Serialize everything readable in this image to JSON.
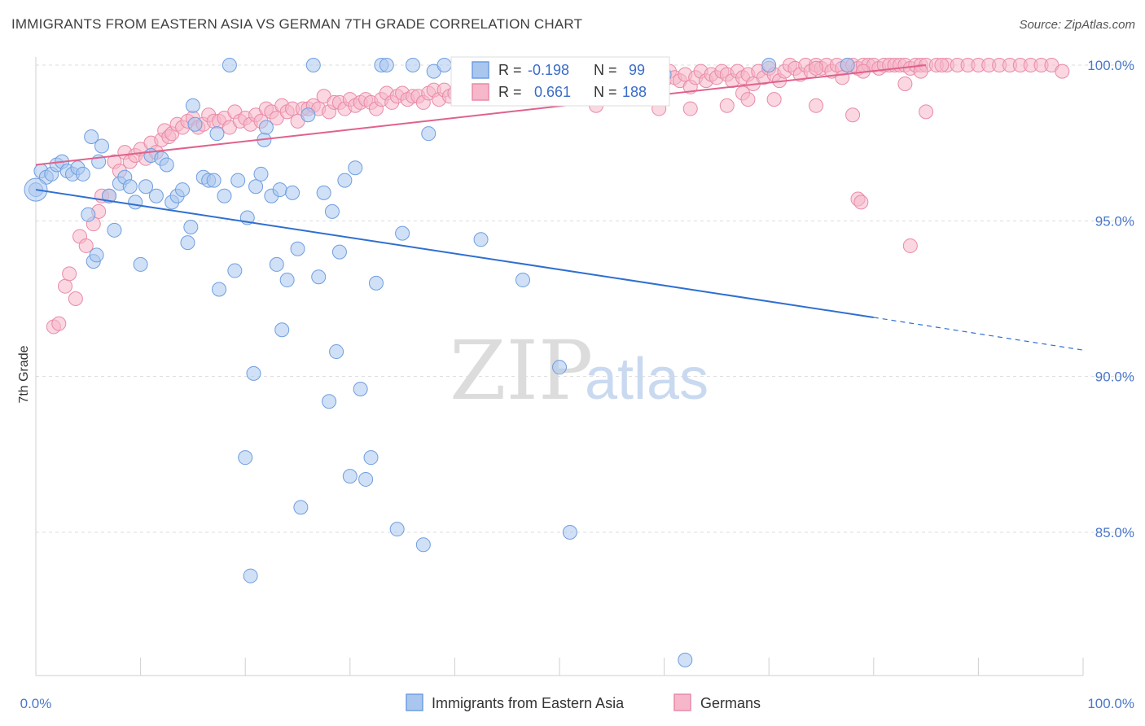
{
  "title": "IMMIGRANTS FROM EASTERN ASIA VS GERMAN 7TH GRADE CORRELATION CHART",
  "source": "Source: ZipAtlas.com",
  "watermark": {
    "zip": "ZIP",
    "atlas": "atlas"
  },
  "colors": {
    "blue_fill": "#a9c6ef",
    "blue_stroke": "#6f9ee0",
    "blue_line": "#2f6fd0",
    "pink_fill": "#f5b7c9",
    "pink_stroke": "#e98aa8",
    "pink_line": "#e0628c",
    "grid": "#dddddd",
    "tick_text": "#4a78c8"
  },
  "stats_box": {
    "blue": {
      "r_label": "R =",
      "r_value": "-0.198",
      "n_label": "N =",
      "n_value": "99"
    },
    "pink": {
      "r_label": "R =",
      "r_value": "0.661",
      "n_label": "N =",
      "n_value": "188"
    }
  },
  "legend": [
    {
      "label": "Immigrants from Eastern Asia",
      "color": "blue"
    },
    {
      "label": "Germans",
      "color": "pink"
    }
  ],
  "chart_data": {
    "type": "scatter",
    "xlabel": "",
    "ylabel": "7th Grade",
    "xlim": [
      0,
      100
    ],
    "ylim": [
      80.5,
      100.8
    ],
    "x_tick_labels": [
      {
        "value": 0,
        "label": "0.0%"
      },
      {
        "value": 100,
        "label": "100.0%"
      }
    ],
    "y_ticks": [
      {
        "value": 100,
        "label": "100.0%"
      },
      {
        "value": 95,
        "label": "95.0%"
      },
      {
        "value": 90,
        "label": "90.0%"
      },
      {
        "value": 85,
        "label": "85.0%"
      }
    ],
    "series": [
      {
        "name": "Immigrants from Eastern Asia",
        "color_key": "blue",
        "trend": {
          "x_start": 0,
          "y_start": 96.0,
          "x_end": 80,
          "y_end": 91.9,
          "dashed_to_x": 100,
          "dashed_to_y": 90.85
        },
        "points": [
          [
            0,
            96
          ],
          [
            0.5,
            96.6
          ],
          [
            1,
            96.4
          ],
          [
            1.5,
            96.5
          ],
          [
            2,
            96.8
          ],
          [
            2.5,
            96.9
          ],
          [
            3,
            96.6
          ],
          [
            3.5,
            96.5
          ],
          [
            4,
            96.7
          ],
          [
            4.5,
            96.5
          ],
          [
            5,
            95.2
          ],
          [
            5.3,
            97.7
          ],
          [
            5.5,
            93.7
          ],
          [
            5.8,
            93.9
          ],
          [
            6,
            96.9
          ],
          [
            6.3,
            97.4
          ],
          [
            7,
            95.8
          ],
          [
            7.5,
            94.7
          ],
          [
            8,
            96.2
          ],
          [
            8.5,
            96.4
          ],
          [
            9,
            96.1
          ],
          [
            9.5,
            95.6
          ],
          [
            10,
            93.6
          ],
          [
            10.5,
            96.1
          ],
          [
            11,
            97.1
          ],
          [
            11.5,
            95.8
          ],
          [
            12,
            97.0
          ],
          [
            12.5,
            96.8
          ],
          [
            13,
            95.6
          ],
          [
            13.5,
            95.8
          ],
          [
            14,
            96.0
          ],
          [
            14.5,
            94.3
          ],
          [
            14.8,
            94.8
          ],
          [
            15,
            98.7
          ],
          [
            15.2,
            98.1
          ],
          [
            16,
            96.4
          ],
          [
            16.5,
            96.3
          ],
          [
            17,
            96.3
          ],
          [
            17.3,
            97.8
          ],
          [
            17.5,
            92.8
          ],
          [
            18,
            95.8
          ],
          [
            18.5,
            100
          ],
          [
            19,
            93.4
          ],
          [
            19.3,
            96.3
          ],
          [
            20,
            87.4
          ],
          [
            20.2,
            95.1
          ],
          [
            20.5,
            83.6
          ],
          [
            20.8,
            90.1
          ],
          [
            21,
            96.1
          ],
          [
            21.5,
            96.5
          ],
          [
            21.8,
            97.6
          ],
          [
            22,
            98.0
          ],
          [
            22.5,
            95.8
          ],
          [
            23,
            93.6
          ],
          [
            23.3,
            96.0
          ],
          [
            23.5,
            91.5
          ],
          [
            24,
            93.1
          ],
          [
            24.5,
            95.9
          ],
          [
            25,
            94.1
          ],
          [
            25.3,
            85.8
          ],
          [
            26,
            98.4
          ],
          [
            26.5,
            100
          ],
          [
            27,
            93.2
          ],
          [
            27.5,
            95.9
          ],
          [
            28,
            89.2
          ],
          [
            28.3,
            95.3
          ],
          [
            28.7,
            90.8
          ],
          [
            29,
            94.0
          ],
          [
            29.5,
            96.3
          ],
          [
            30,
            86.8
          ],
          [
            30.5,
            96.7
          ],
          [
            31,
            89.6
          ],
          [
            31.5,
            86.7
          ],
          [
            32,
            87.4
          ],
          [
            32.5,
            93.0
          ],
          [
            33,
            100
          ],
          [
            33.5,
            100
          ],
          [
            34.5,
            85.1
          ],
          [
            35,
            94.6
          ],
          [
            36,
            100
          ],
          [
            37,
            84.6
          ],
          [
            37.5,
            97.8
          ],
          [
            38,
            99.8
          ],
          [
            39,
            100
          ],
          [
            40.5,
            99.9
          ],
          [
            42,
            99.9
          ],
          [
            42.5,
            94.4
          ],
          [
            46,
            99.8
          ],
          [
            46.5,
            93.1
          ],
          [
            50,
            90.3
          ],
          [
            50.5,
            100
          ],
          [
            51,
            85.0
          ],
          [
            54,
            99.5
          ],
          [
            55,
            99.6
          ],
          [
            56,
            99.3
          ],
          [
            56.5,
            100
          ],
          [
            58,
            99.5
          ],
          [
            60,
            99.7
          ],
          [
            62,
            80.9
          ],
          [
            70,
            100
          ],
          [
            77.5,
            100
          ]
        ]
      },
      {
        "name": "Germans",
        "color_key": "pink",
        "trend": {
          "x_start": 0,
          "y_start": 96.8,
          "x_end": 85,
          "y_end": 100.0
        },
        "points": [
          [
            1.7,
            91.6
          ],
          [
            2.2,
            91.7
          ],
          [
            2.8,
            92.9
          ],
          [
            3.2,
            93.3
          ],
          [
            3.8,
            92.5
          ],
          [
            4.2,
            94.5
          ],
          [
            4.8,
            94.2
          ],
          [
            5.5,
            94.9
          ],
          [
            6,
            95.3
          ],
          [
            6.3,
            95.8
          ],
          [
            7,
            95.8
          ],
          [
            7.5,
            96.9
          ],
          [
            8,
            96.6
          ],
          [
            8.5,
            97.2
          ],
          [
            9,
            96.9
          ],
          [
            9.5,
            97.1
          ],
          [
            10,
            97.3
          ],
          [
            10.5,
            97.0
          ],
          [
            11,
            97.5
          ],
          [
            11.5,
            97.2
          ],
          [
            12,
            97.6
          ],
          [
            12.3,
            97.9
          ],
          [
            12.7,
            97.7
          ],
          [
            13,
            97.8
          ],
          [
            13.5,
            98.1
          ],
          [
            14,
            98.0
          ],
          [
            14.5,
            98.2
          ],
          [
            15,
            98.3
          ],
          [
            15.5,
            98.0
          ],
          [
            16,
            98.1
          ],
          [
            16.5,
            98.4
          ],
          [
            17,
            98.2
          ],
          [
            17.5,
            98.2
          ],
          [
            18,
            98.3
          ],
          [
            18.5,
            98.0
          ],
          [
            19,
            98.5
          ],
          [
            19.5,
            98.2
          ],
          [
            20,
            98.3
          ],
          [
            20.5,
            98.1
          ],
          [
            21,
            98.4
          ],
          [
            21.5,
            98.2
          ],
          [
            22,
            98.6
          ],
          [
            22.5,
            98.5
          ],
          [
            23,
            98.3
          ],
          [
            23.5,
            98.7
          ],
          [
            24,
            98.5
          ],
          [
            24.5,
            98.6
          ],
          [
            25,
            98.2
          ],
          [
            25.5,
            98.6
          ],
          [
            26,
            98.6
          ],
          [
            26.5,
            98.7
          ],
          [
            27,
            98.6
          ],
          [
            27.5,
            99.0
          ],
          [
            28,
            98.5
          ],
          [
            28.5,
            98.8
          ],
          [
            29,
            98.8
          ],
          [
            29.5,
            98.6
          ],
          [
            30,
            98.9
          ],
          [
            30.5,
            98.7
          ],
          [
            31,
            98.8
          ],
          [
            31.5,
            98.9
          ],
          [
            32,
            98.8
          ],
          [
            32.5,
            98.6
          ],
          [
            33,
            98.9
          ],
          [
            33.5,
            99.1
          ],
          [
            34,
            98.8
          ],
          [
            34.5,
            99.0
          ],
          [
            35,
            99.1
          ],
          [
            35.5,
            98.9
          ],
          [
            36,
            99.0
          ],
          [
            36.5,
            99.0
          ],
          [
            37,
            98.8
          ],
          [
            37.5,
            99.1
          ],
          [
            38,
            99.2
          ],
          [
            38.5,
            98.9
          ],
          [
            39,
            99.2
          ],
          [
            39.5,
            99.0
          ],
          [
            40,
            99.1
          ],
          [
            40.5,
            99.2
          ],
          [
            41,
            99.0
          ],
          [
            41.5,
            99.3
          ],
          [
            42,
            99.1
          ],
          [
            42.5,
            99.2
          ],
          [
            43,
            99.0
          ],
          [
            43.5,
            99.3
          ],
          [
            44,
            99.1
          ],
          [
            44.5,
            99.2
          ],
          [
            45,
            99.4
          ],
          [
            45.5,
            99.1
          ],
          [
            46,
            99.2
          ],
          [
            46.5,
            99.3
          ],
          [
            47,
            99.5
          ],
          [
            47.5,
            99.3
          ],
          [
            48,
            99.2
          ],
          [
            48.5,
            99.4
          ],
          [
            49,
            99.3
          ],
          [
            49.5,
            99.5
          ],
          [
            50,
            99.4
          ],
          [
            50.5,
            99.2
          ],
          [
            51,
            99.5
          ],
          [
            51.5,
            99.3
          ],
          [
            52,
            99.4
          ],
          [
            52.5,
            99.6
          ],
          [
            53,
            99.4
          ],
          [
            53.5,
            98.7
          ],
          [
            54,
            99.5
          ],
          [
            54.5,
            99.4
          ],
          [
            55,
            99.6
          ],
          [
            55.5,
            99.3
          ],
          [
            56,
            99.5
          ],
          [
            56.5,
            99.4
          ],
          [
            57,
            99.7
          ],
          [
            57.5,
            99.5
          ],
          [
            58,
            99.6
          ],
          [
            58.5,
            99.3
          ],
          [
            59,
            99.6
          ],
          [
            59.5,
            98.6
          ],
          [
            60,
            99.5
          ],
          [
            60.5,
            99.8
          ],
          [
            61,
            99.6
          ],
          [
            61.5,
            99.5
          ],
          [
            62,
            99.7
          ],
          [
            62.5,
            99.3
          ],
          [
            63,
            99.6
          ],
          [
            63.5,
            99.8
          ],
          [
            64,
            99.5
          ],
          [
            64.5,
            99.7
          ],
          [
            65,
            99.6
          ],
          [
            65.5,
            99.8
          ],
          [
            66,
            99.7
          ],
          [
            66.5,
            99.5
          ],
          [
            67,
            99.8
          ],
          [
            67.5,
            99.6
          ],
          [
            68,
            99.7
          ],
          [
            68.5,
            99.4
          ],
          [
            69,
            99.8
          ],
          [
            69.5,
            99.6
          ],
          [
            70,
            99.9
          ],
          [
            70.5,
            99.7
          ],
          [
            71,
            99.5
          ],
          [
            71.5,
            99.8
          ],
          [
            72,
            100
          ],
          [
            72.5,
            99.9
          ],
          [
            73,
            99.7
          ],
          [
            73.5,
            100
          ],
          [
            74,
            99.8
          ],
          [
            74.5,
            100
          ],
          [
            75,
            99.9
          ],
          [
            75.5,
            100
          ],
          [
            76,
            99.8
          ],
          [
            76.5,
            100
          ],
          [
            77,
            99.9
          ],
          [
            77.5,
            100
          ],
          [
            78,
            100
          ],
          [
            78.5,
            99.9
          ],
          [
            79,
            100
          ],
          [
            79.5,
            100
          ],
          [
            80,
            100
          ],
          [
            80.5,
            99.9
          ],
          [
            81,
            100
          ],
          [
            81.5,
            100
          ],
          [
            82,
            100
          ],
          [
            82.5,
            100
          ],
          [
            83,
            100
          ],
          [
            83.5,
            99.9
          ],
          [
            84,
            100
          ],
          [
            84.5,
            100
          ],
          [
            85,
            100
          ],
          [
            86,
            100
          ],
          [
            87,
            100
          ],
          [
            88,
            100
          ],
          [
            89,
            100
          ],
          [
            90,
            100
          ],
          [
            91,
            100
          ],
          [
            92,
            100
          ],
          [
            93,
            100
          ],
          [
            94,
            100
          ],
          [
            95,
            100
          ],
          [
            96,
            100
          ],
          [
            97,
            100
          ],
          [
            62.5,
            98.6
          ],
          [
            66,
            98.7
          ],
          [
            67.5,
            99.1
          ],
          [
            68,
            98.9
          ],
          [
            70.5,
            98.9
          ],
          [
            74.5,
            98.7
          ],
          [
            78,
            98.4
          ],
          [
            85,
            98.5
          ],
          [
            78.5,
            95.7
          ],
          [
            78.8,
            95.6
          ],
          [
            83,
            99.4
          ],
          [
            98,
            99.8
          ],
          [
            83.5,
            94.2
          ],
          [
            84.5,
            99.8
          ],
          [
            86.5,
            100
          ],
          [
            74.5,
            99.9
          ],
          [
            77,
            99.6
          ],
          [
            79,
            99.8
          ]
        ]
      }
    ]
  }
}
